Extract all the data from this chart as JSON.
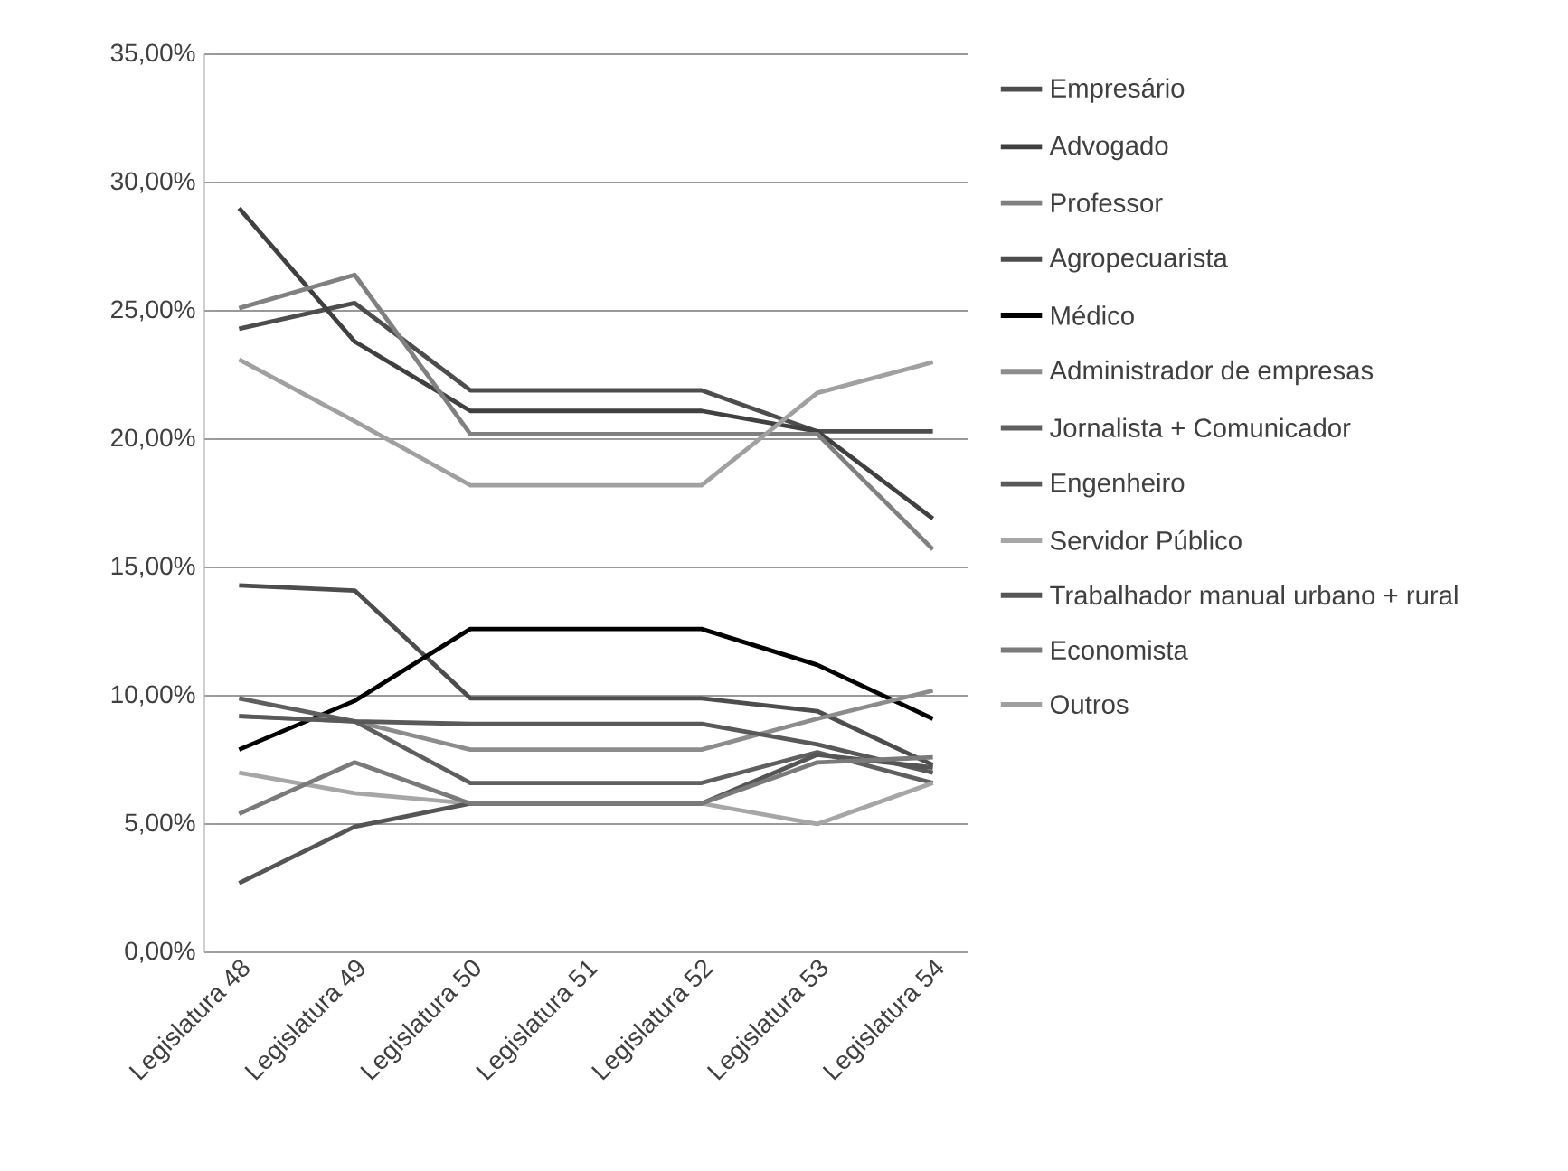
{
  "chart_data": {
    "type": "line",
    "categories": [
      "Legislatura 48",
      "Legislatura 49",
      "Legislatura 50",
      "Legislatura 51",
      "Legislatura 52",
      "Legislatura 53",
      "Legislatura 54"
    ],
    "series": [
      {
        "name": "Empresário",
        "color": "#4d4d4d",
        "values": [
          24.3,
          25.3,
          21.9,
          21.9,
          21.9,
          20.3,
          20.3
        ]
      },
      {
        "name": "Advogado",
        "color": "#404040",
        "values": [
          29.0,
          23.8,
          21.1,
          21.1,
          21.1,
          20.3,
          16.9
        ]
      },
      {
        "name": "Professor",
        "color": "#808080",
        "values": [
          25.1,
          26.4,
          20.2,
          20.2,
          20.2,
          20.2,
          15.7
        ]
      },
      {
        "name": "Agropecuarista",
        "color": "#4d4d4d",
        "values": [
          14.3,
          14.1,
          9.9,
          9.9,
          9.9,
          9.4,
          7.3
        ]
      },
      {
        "name": "Médico",
        "color": "#000000",
        "values": [
          7.9,
          9.8,
          12.6,
          12.6,
          12.6,
          11.2,
          9.1
        ]
      },
      {
        "name": "Administrador de empresas",
        "color": "#8c8c8c",
        "values": [
          9.2,
          9.0,
          7.9,
          7.9,
          7.9,
          9.1,
          10.2
        ]
      },
      {
        "name": "Jornalista + Comunicador",
        "color": "#5f5f5f",
        "values": [
          9.9,
          9.0,
          6.6,
          6.6,
          6.6,
          7.8,
          6.6
        ]
      },
      {
        "name": "Engenheiro",
        "color": "#595959",
        "values": [
          9.2,
          9.0,
          8.9,
          8.9,
          8.9,
          8.1,
          7.0
        ]
      },
      {
        "name": "Servidor Público",
        "color": "#a6a6a6",
        "values": [
          7.0,
          6.2,
          5.8,
          5.8,
          5.8,
          5.0,
          6.6
        ]
      },
      {
        "name": "Trabalhador manual urbano + rural",
        "color": "#555555",
        "values": [
          2.7,
          4.9,
          5.8,
          5.8,
          5.8,
          7.7,
          7.2
        ]
      },
      {
        "name": "Economista",
        "color": "#7a7a7a",
        "values": [
          5.4,
          7.4,
          5.8,
          5.8,
          5.8,
          7.4,
          7.6
        ]
      },
      {
        "name": "Outros",
        "color": "#a0a0a0",
        "values": [
          23.1,
          20.7,
          18.2,
          18.2,
          18.2,
          21.8,
          23.0
        ]
      }
    ],
    "ylim": [
      0,
      35
    ],
    "yticks": [
      {
        "value": 0,
        "label": "0,00%"
      },
      {
        "value": 5,
        "label": "5,00%"
      },
      {
        "value": 10,
        "label": "10,00%"
      },
      {
        "value": 15,
        "label": "15,00%"
      },
      {
        "value": 20,
        "label": "20,00%"
      },
      {
        "value": 25,
        "label": "25,00%"
      },
      {
        "value": 30,
        "label": "30,00%"
      },
      {
        "value": 35,
        "label": "35,00%"
      }
    ],
    "grid": "y",
    "legend": "right",
    "marker": "none",
    "line_style": "solid"
  }
}
